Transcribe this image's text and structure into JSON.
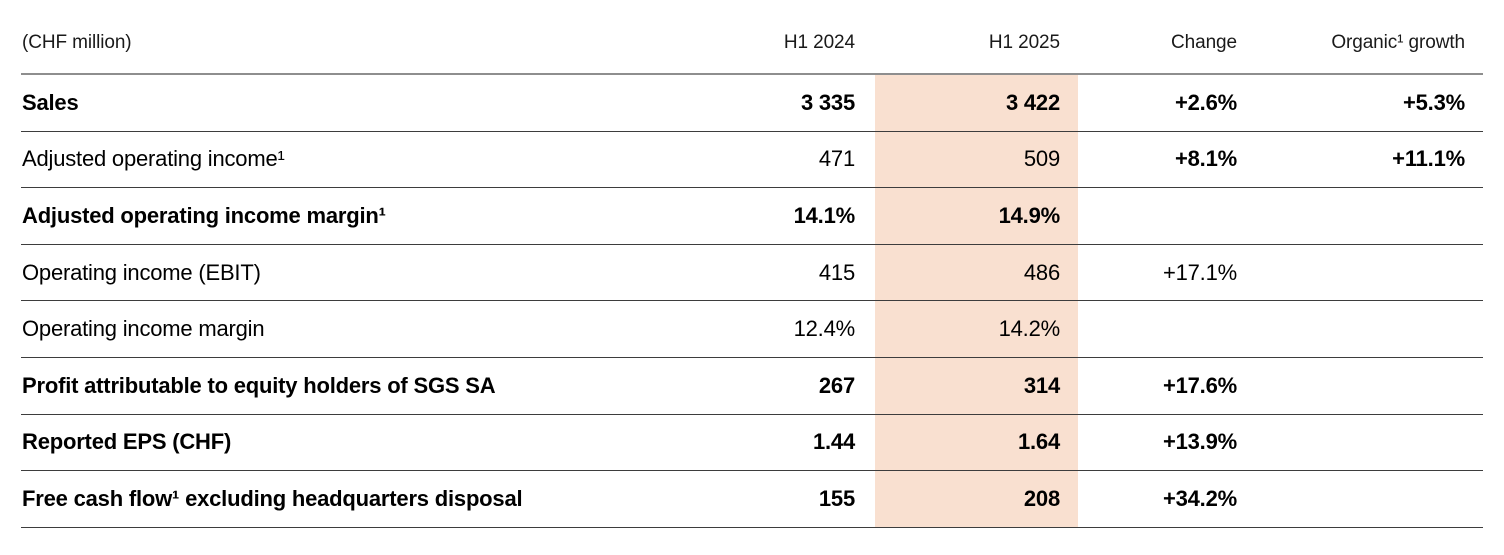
{
  "table": {
    "unit_label": "(CHF million)",
    "columns": {
      "h1_2024": "H1 2024",
      "h1_2025": "H1 2025",
      "change": "Change",
      "organic": "Organic¹ growth"
    },
    "rows": [
      {
        "label": "Sales",
        "bold": true,
        "h1_2024": "3 335",
        "h1_2025": "3 422",
        "change": "+2.6%",
        "organic": "+5.3%",
        "change_bold": true
      },
      {
        "label": "Adjusted operating income¹",
        "bold": false,
        "h1_2024": "471",
        "h1_2025": "509",
        "change": "+8.1%",
        "organic": "+11.1%",
        "change_bold": true
      },
      {
        "label": "Adjusted operating income margin¹",
        "bold": true,
        "h1_2024": "14.1%",
        "h1_2025": "14.9%",
        "change": "",
        "organic": "",
        "change_bold": false
      },
      {
        "label": "Operating income (EBIT)",
        "bold": false,
        "h1_2024": "415",
        "h1_2025": "486",
        "change": "+17.1%",
        "organic": "",
        "change_bold": false
      },
      {
        "label": "Operating income margin",
        "bold": false,
        "h1_2024": "12.4%",
        "h1_2025": "14.2%",
        "change": "",
        "organic": "",
        "change_bold": false
      },
      {
        "label": "Profit attributable to equity holders of SGS SA",
        "bold": true,
        "h1_2024": "267",
        "h1_2025": "314",
        "change": "+17.6%",
        "organic": "",
        "change_bold": true
      },
      {
        "label": "Reported EPS (CHF)",
        "bold": true,
        "h1_2024": "1.44",
        "h1_2025": "1.64",
        "change": "+13.9%",
        "organic": "",
        "change_bold": true
      },
      {
        "label": "Free cash flow¹ excluding headquarters disposal",
        "bold": true,
        "h1_2024": "155",
        "h1_2025": "208",
        "change": "+34.2%",
        "organic": "",
        "change_bold": true
      }
    ],
    "colors": {
      "highlight_band": "#f9e0d0",
      "header_rule": "#8e8e8e",
      "row_rule": "#3d3d3d",
      "text": "#000000"
    }
  }
}
